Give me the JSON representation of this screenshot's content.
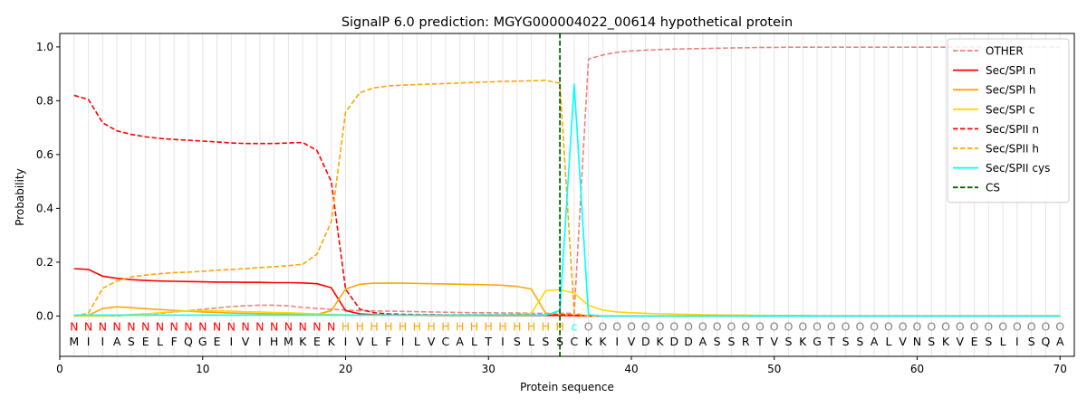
{
  "chart_data": {
    "type": "line",
    "title": "SignalP 6.0 prediction: MGYG000004022_00614 hypothetical protein",
    "xlabel": "Protein sequence",
    "ylabel": "Probability",
    "xlim": [
      0,
      71
    ],
    "ylim": [
      -0.15,
      1.05
    ],
    "xticks": [
      0,
      10,
      20,
      30,
      40,
      50,
      60,
      70
    ],
    "yticks": [
      0.0,
      0.2,
      0.4,
      0.6,
      0.8,
      1.0
    ],
    "x_tick_labels": [
      "0",
      "10",
      "20",
      "30",
      "40",
      "50",
      "60",
      "70"
    ],
    "y_tick_labels": [
      "0.0",
      "0.2",
      "0.4",
      "0.6",
      "0.8",
      "1.0"
    ],
    "grid": "vertical lines at each residue",
    "legend_placement": "top-right",
    "sequence": [
      "M",
      "I",
      "I",
      "A",
      "S",
      "E",
      "L",
      "F",
      "Q",
      "G",
      "E",
      "I",
      "V",
      "I",
      "H",
      "M",
      "K",
      "E",
      "K",
      "I",
      "V",
      "L",
      "F",
      "I",
      "L",
      "V",
      "C",
      "A",
      "L",
      "T",
      "I",
      "S",
      "L",
      "S",
      "S",
      "C",
      "K",
      "K",
      "I",
      "V",
      "D",
      "K",
      "D",
      "D",
      "A",
      "S",
      "S",
      "R",
      "T",
      "V",
      "S",
      "K",
      "G",
      "T",
      "S",
      "S",
      "A",
      "L",
      "V",
      "N",
      "S",
      "K",
      "V",
      "E",
      "S",
      "L",
      "I",
      "S",
      "Q",
      "A"
    ],
    "region_labels": [
      "N",
      "N",
      "N",
      "N",
      "N",
      "N",
      "N",
      "N",
      "N",
      "N",
      "N",
      "N",
      "N",
      "N",
      "N",
      "N",
      "N",
      "N",
      "N",
      "H",
      "H",
      "H",
      "H",
      "H",
      "H",
      "H",
      "H",
      "H",
      "H",
      "H",
      "H",
      "H",
      "H",
      "H",
      "H",
      "c",
      "O",
      "O",
      "O",
      "O",
      "O",
      "O",
      "O",
      "O",
      "O",
      "O",
      "O",
      "O",
      "O",
      "O",
      "O",
      "O",
      "O",
      "O",
      "O",
      "O",
      "O",
      "O",
      "O",
      "O",
      "O",
      "O",
      "O",
      "O",
      "O",
      "O",
      "O",
      "O",
      "O",
      "O"
    ],
    "region_colors": {
      "N": "#ff0000",
      "H": "#ffa500",
      "c": "#00ffff",
      "O": "#808080"
    },
    "cleavage_site": 35,
    "series": [
      {
        "name": "OTHER",
        "color": "#f08080",
        "dash": "dashed",
        "values": [
          0.0,
          0.0,
          0.0,
          0.0,
          0.005,
          0.008,
          0.01,
          0.015,
          0.02,
          0.025,
          0.03,
          0.035,
          0.038,
          0.04,
          0.04,
          0.038,
          0.032,
          0.028,
          0.025,
          0.022,
          0.02,
          0.019,
          0.018,
          0.017,
          0.016,
          0.015,
          0.014,
          0.013,
          0.012,
          0.012,
          0.011,
          0.011,
          0.01,
          0.01,
          0.01,
          0.01,
          0.955,
          0.97,
          0.98,
          0.985,
          0.988,
          0.99,
          0.992,
          0.993,
          0.994,
          0.995,
          0.996,
          0.997,
          0.998,
          0.998,
          0.999,
          0.999,
          0.999,
          0.999,
          0.999,
          0.999,
          0.999,
          0.999,
          0.999,
          0.999,
          0.999,
          0.999,
          0.999,
          0.999,
          0.999,
          0.999,
          0.999,
          0.999,
          0.999,
          0.999
        ]
      },
      {
        "name": "Sec/SPI n",
        "color": "#ff0000",
        "dash": "solid",
        "values": [
          0.176,
          0.173,
          0.148,
          0.14,
          0.135,
          0.132,
          0.13,
          0.129,
          0.128,
          0.127,
          0.126,
          0.126,
          0.125,
          0.125,
          0.124,
          0.124,
          0.123,
          0.12,
          0.105,
          0.02,
          0.008,
          0.005,
          0.004,
          0.003,
          0.003,
          0.002,
          0.002,
          0.002,
          0.002,
          0.002,
          0.002,
          0.002,
          0.002,
          0.002,
          0.002,
          0.001,
          0.0,
          0.0,
          0.0,
          0.0,
          0.0,
          0.0,
          0.0,
          0.0,
          0.0,
          0.0,
          0.0,
          0.0,
          0.0,
          0.0,
          0.0,
          0.0,
          0.0,
          0.0,
          0.0,
          0.0,
          0.0,
          0.0,
          0.0,
          0.0,
          0.0,
          0.0,
          0.0,
          0.0,
          0.0,
          0.0,
          0.0,
          0.0,
          0.0,
          0.0
        ]
      },
      {
        "name": "Sec/SPI h",
        "color": "#ffa500",
        "dash": "solid",
        "values": [
          0.0,
          0.002,
          0.028,
          0.034,
          0.031,
          0.027,
          0.024,
          0.021,
          0.018,
          0.015,
          0.013,
          0.011,
          0.01,
          0.009,
          0.008,
          0.007,
          0.006,
          0.006,
          0.02,
          0.1,
          0.118,
          0.122,
          0.122,
          0.122,
          0.121,
          0.12,
          0.119,
          0.118,
          0.117,
          0.116,
          0.114,
          0.11,
          0.1,
          0.01,
          0.005,
          0.003,
          0.001,
          0.0,
          0.0,
          0.0,
          0.0,
          0.0,
          0.0,
          0.0,
          0.0,
          0.0,
          0.0,
          0.0,
          0.0,
          0.0,
          0.0,
          0.0,
          0.0,
          0.0,
          0.0,
          0.0,
          0.0,
          0.0,
          0.0,
          0.0,
          0.0,
          0.0,
          0.0,
          0.0,
          0.0,
          0.0,
          0.0,
          0.0,
          0.0,
          0.0
        ]
      },
      {
        "name": "Sec/SPI c",
        "color": "#ffd700",
        "dash": "solid",
        "values": [
          0.0,
          0.0,
          0.0,
          0.002,
          0.005,
          0.008,
          0.012,
          0.016,
          0.019,
          0.02,
          0.019,
          0.018,
          0.016,
          0.015,
          0.013,
          0.012,
          0.01,
          0.008,
          0.006,
          0.004,
          0.003,
          0.003,
          0.003,
          0.003,
          0.003,
          0.003,
          0.003,
          0.003,
          0.003,
          0.004,
          0.004,
          0.005,
          0.01,
          0.094,
          0.098,
          0.085,
          0.04,
          0.022,
          0.015,
          0.012,
          0.01,
          0.008,
          0.007,
          0.006,
          0.005,
          0.004,
          0.003,
          0.003,
          0.002,
          0.002,
          0.002,
          0.002,
          0.001,
          0.001,
          0.001,
          0.001,
          0.001,
          0.001,
          0.001,
          0.001,
          0.001,
          0.001,
          0.001,
          0.001,
          0.001,
          0.001,
          0.001,
          0.001,
          0.001,
          0.001
        ]
      },
      {
        "name": "Sec/SPII n",
        "color": "#ff0000",
        "dash": "dashed",
        "values": [
          0.82,
          0.805,
          0.718,
          0.688,
          0.675,
          0.666,
          0.66,
          0.656,
          0.653,
          0.65,
          0.647,
          0.643,
          0.641,
          0.641,
          0.641,
          0.643,
          0.645,
          0.615,
          0.5,
          0.1,
          0.025,
          0.012,
          0.008,
          0.006,
          0.005,
          0.005,
          0.004,
          0.004,
          0.004,
          0.004,
          0.004,
          0.004,
          0.004,
          0.004,
          0.004,
          0.003,
          0.0,
          0.0,
          0.0,
          0.0,
          0.0,
          0.0,
          0.0,
          0.0,
          0.0,
          0.0,
          0.0,
          0.0,
          0.0,
          0.0,
          0.0,
          0.0,
          0.0,
          0.0,
          0.0,
          0.0,
          0.0,
          0.0,
          0.0,
          0.0,
          0.0,
          0.0,
          0.0,
          0.0,
          0.0,
          0.0,
          0.0,
          0.0,
          0.0,
          0.0
        ]
      },
      {
        "name": "Sec/SPII h",
        "color": "#ffa500",
        "dash": "dashed",
        "values": [
          0.0,
          0.01,
          0.103,
          0.13,
          0.145,
          0.152,
          0.157,
          0.161,
          0.163,
          0.166,
          0.17,
          0.173,
          0.176,
          0.18,
          0.183,
          0.187,
          0.192,
          0.23,
          0.35,
          0.758,
          0.83,
          0.848,
          0.855,
          0.858,
          0.86,
          0.862,
          0.864,
          0.866,
          0.868,
          0.87,
          0.872,
          0.873,
          0.874,
          0.876,
          0.865,
          0.01,
          0.0,
          0.0,
          0.0,
          0.0,
          0.0,
          0.0,
          0.0,
          0.0,
          0.0,
          0.0,
          0.0,
          0.0,
          0.0,
          0.0,
          0.0,
          0.0,
          0.0,
          0.0,
          0.0,
          0.0,
          0.0,
          0.0,
          0.0,
          0.0,
          0.0,
          0.0,
          0.0,
          0.0,
          0.0,
          0.0,
          0.0,
          0.0,
          0.0,
          0.0
        ]
      },
      {
        "name": "Sec/SPII cys",
        "color": "#00ffff",
        "dash": "solid",
        "values": [
          0.003,
          0.003,
          0.003,
          0.003,
          0.003,
          0.003,
          0.003,
          0.003,
          0.003,
          0.003,
          0.003,
          0.003,
          0.003,
          0.003,
          0.003,
          0.003,
          0.003,
          0.003,
          0.003,
          0.003,
          0.003,
          0.003,
          0.003,
          0.003,
          0.003,
          0.003,
          0.003,
          0.003,
          0.003,
          0.003,
          0.003,
          0.003,
          0.003,
          0.003,
          0.02,
          0.862,
          0.005,
          0.0,
          0.0,
          0.0,
          0.0,
          0.0,
          0.0,
          0.0,
          0.0,
          0.0,
          0.0,
          0.0,
          0.0,
          0.0,
          0.0,
          0.0,
          0.0,
          0.0,
          0.0,
          0.0,
          0.0,
          0.0,
          0.0,
          0.0,
          0.0,
          0.0,
          0.0,
          0.0,
          0.0,
          0.0,
          0.0,
          0.0,
          0.0,
          0.0
        ]
      },
      {
        "name": "CS",
        "color": "#006400",
        "dash": "dashed",
        "vertical_at": 35
      }
    ]
  }
}
